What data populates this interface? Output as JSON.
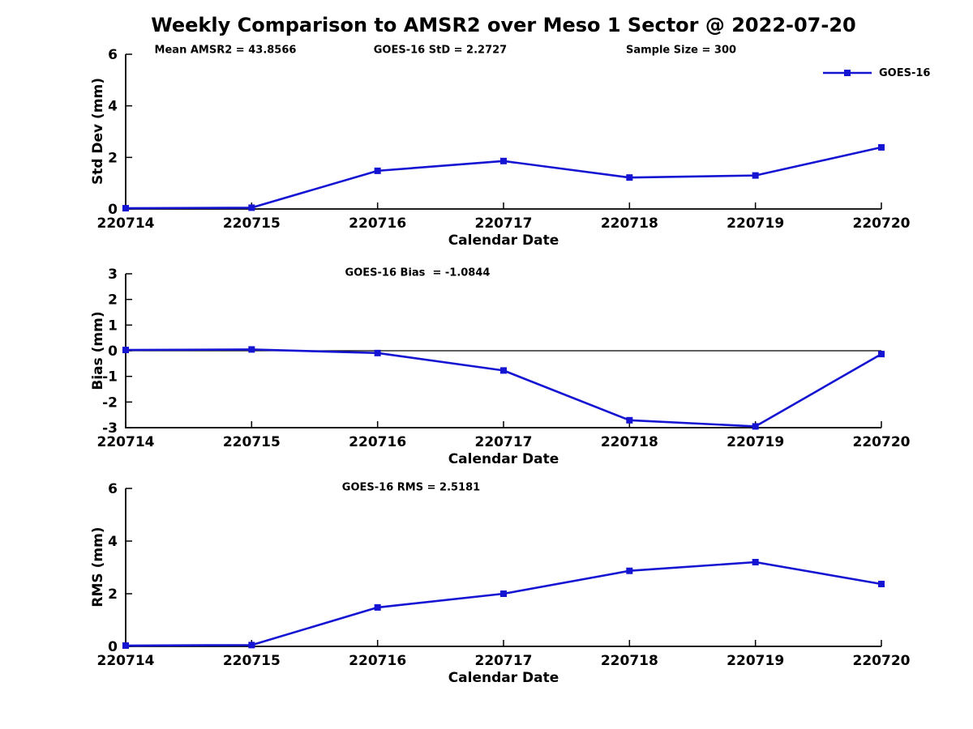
{
  "title": "Weekly Comparison to AMSR2 over Meso 1 Sector @ 2022-07-20",
  "legend": {
    "label": "GOES-16",
    "marker": "square",
    "position": "upper-right-outside"
  },
  "colors": {
    "line": "#1414d2",
    "axis": "#000000",
    "text": "#000000",
    "background": "#ffffff"
  },
  "chart_data": [
    {
      "type": "line",
      "categories": [
        "220714",
        "220715",
        "220716",
        "220717",
        "220718",
        "220719",
        "220720"
      ],
      "series": [
        {
          "name": "GOES-16",
          "values": [
            0.03,
            0.05,
            1.48,
            1.86,
            1.22,
            1.3,
            2.39
          ]
        }
      ],
      "xlabel": "Calendar Date",
      "ylabel": "Std Dev (mm)",
      "ylim": [
        0,
        6
      ],
      "yticks": [
        0,
        2,
        4,
        6
      ],
      "grid": false,
      "zero_line": false,
      "annotations": [
        {
          "text": "Mean AMSR2 = 43.8566"
        },
        {
          "text": "GOES-16 StD = 2.2727"
        },
        {
          "text": "Sample Size = 300"
        }
      ]
    },
    {
      "type": "line",
      "categories": [
        "220714",
        "220715",
        "220716",
        "220717",
        "220718",
        "220719",
        "220720"
      ],
      "series": [
        {
          "name": "GOES-16",
          "values": [
            0.03,
            0.05,
            -0.09,
            -0.77,
            -2.71,
            -2.95,
            -0.13
          ]
        }
      ],
      "xlabel": "Calendar Date",
      "ylabel": "Bias (mm)",
      "ylim": [
        -3,
        3
      ],
      "yticks": [
        3,
        2,
        1,
        0,
        -1,
        -2,
        -3
      ],
      "grid": false,
      "zero_line": true,
      "annotations": [
        {
          "text": "GOES-16 Bias  = -1.0844"
        }
      ]
    },
    {
      "type": "line",
      "categories": [
        "220714",
        "220715",
        "220716",
        "220717",
        "220718",
        "220719",
        "220720"
      ],
      "series": [
        {
          "name": "GOES-16",
          "values": [
            0.03,
            0.05,
            1.48,
            2.0,
            2.87,
            3.2,
            2.37
          ]
        }
      ],
      "xlabel": "Calendar Date",
      "ylabel": "RMS (mm)",
      "ylim": [
        0,
        6
      ],
      "yticks": [
        0,
        2,
        4,
        6
      ],
      "grid": false,
      "zero_line": false,
      "annotations": [
        {
          "text": "GOES-16 RMS = 2.5181"
        }
      ]
    }
  ]
}
